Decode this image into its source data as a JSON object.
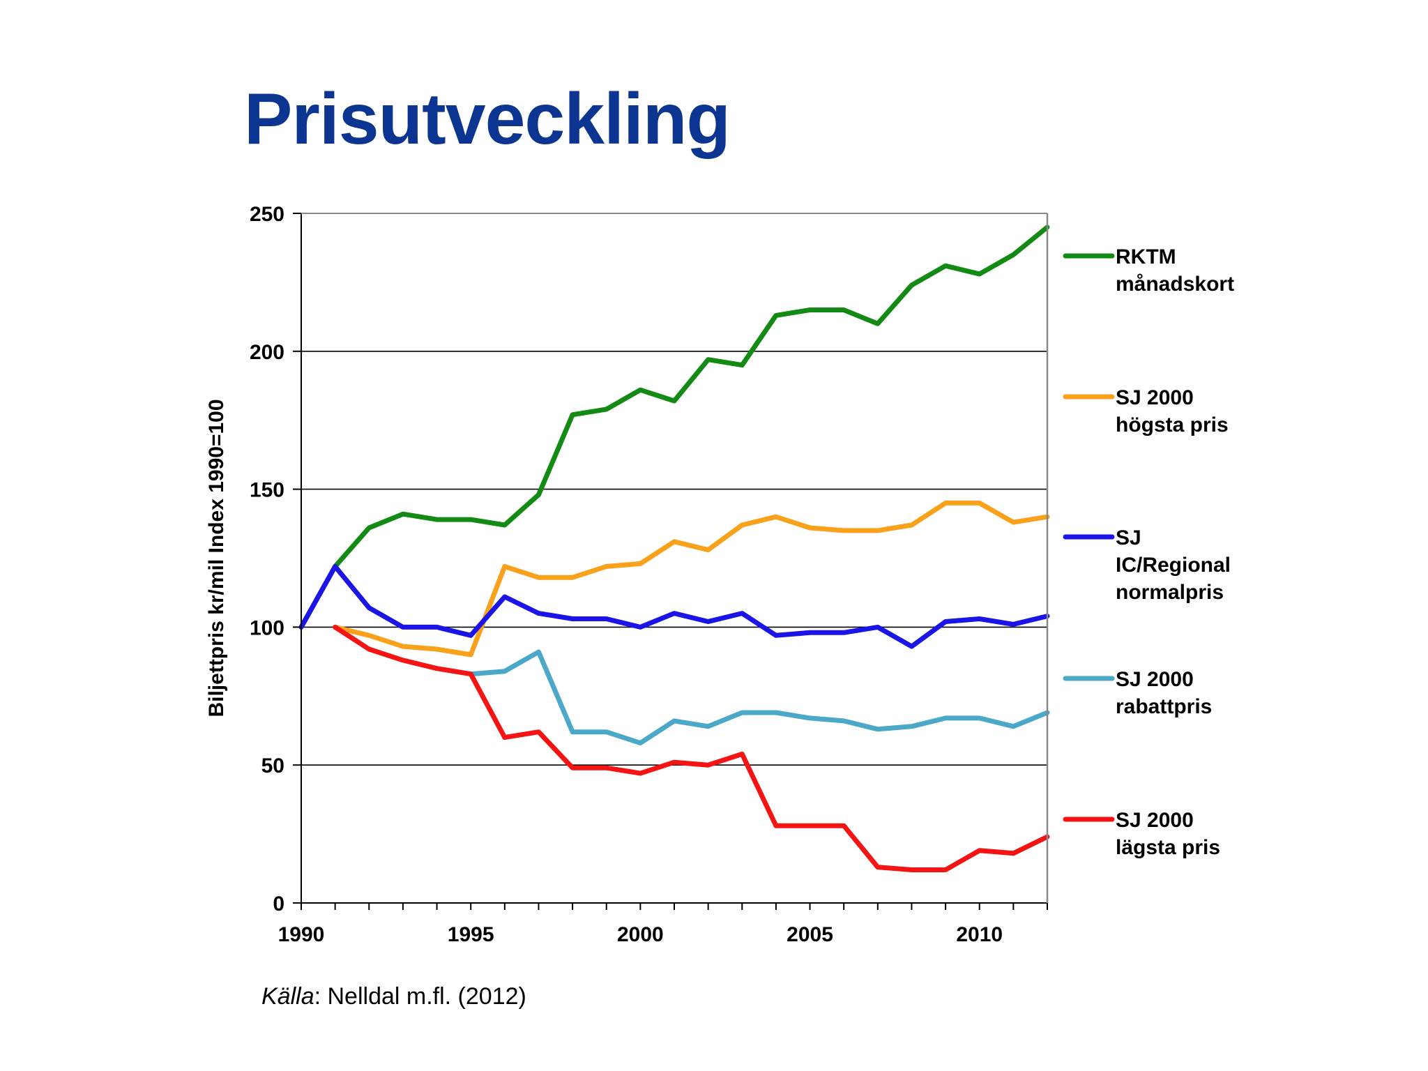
{
  "slide": {
    "title": "Prisutveckling",
    "source_label": "Källa",
    "source_text": ": Nelldal m.fl. (2012)"
  },
  "chart_data": {
    "type": "line",
    "title": "",
    "xlabel": "",
    "ylabel": "Biljettpris kr/mil Index 1990=100",
    "xlim": [
      1990,
      2012
    ],
    "ylim": [
      0,
      250
    ],
    "x_ticks": [
      1990,
      1995,
      2000,
      2005,
      2010
    ],
    "y_ticks": [
      0,
      50,
      100,
      150,
      200,
      250
    ],
    "grid": "horizontal",
    "legend_position": "right",
    "series": [
      {
        "name": [
          "RKTM",
          "månadskort"
        ],
        "color": "#138A13",
        "x": [
          1990,
          1991,
          1992,
          1993,
          1994,
          1995,
          1996,
          1997,
          1998,
          1999,
          2000,
          2001,
          2002,
          2003,
          2004,
          2005,
          2006,
          2007,
          2008,
          2009,
          2010,
          2011,
          2012
        ],
        "values": [
          100,
          122,
          136,
          141,
          139,
          139,
          137,
          148,
          177,
          179,
          186,
          182,
          197,
          195,
          213,
          215,
          215,
          210,
          224,
          231,
          228,
          235,
          245
        ]
      },
      {
        "name": [
          "SJ 2000",
          "högsta pris"
        ],
        "color": "#F9A11B",
        "x": [
          1991,
          1992,
          1993,
          1994,
          1995,
          1996,
          1997,
          1998,
          1999,
          2000,
          2001,
          2002,
          2003,
          2004,
          2005,
          2006,
          2007,
          2008,
          2009,
          2010,
          2011,
          2012
        ],
        "values": [
          100,
          97,
          93,
          92,
          90,
          122,
          118,
          118,
          122,
          123,
          131,
          128,
          137,
          140,
          136,
          135,
          135,
          137,
          145,
          145,
          138,
          140
        ]
      },
      {
        "name": [
          "SJ",
          "IC/Regional",
          "normalpris"
        ],
        "color": "#1A14E6",
        "x": [
          1990,
          1991,
          1992,
          1993,
          1994,
          1995,
          1996,
          1997,
          1998,
          1999,
          2000,
          2001,
          2002,
          2003,
          2004,
          2005,
          2006,
          2007,
          2008,
          2009,
          2010,
          2011,
          2012
        ],
        "values": [
          100,
          122,
          107,
          100,
          100,
          97,
          111,
          105,
          103,
          103,
          100,
          105,
          102,
          105,
          97,
          98,
          98,
          100,
          93,
          102,
          103,
          101,
          104
        ]
      },
      {
        "name": [
          "SJ 2000",
          "rabattpris"
        ],
        "color": "#4BA8C8",
        "x": [
          1995,
          1996,
          1997,
          1998,
          1999,
          2000,
          2001,
          2002,
          2003,
          2004,
          2005,
          2006,
          2007,
          2008,
          2009,
          2010,
          2011,
          2012
        ],
        "values": [
          83,
          84,
          91,
          62,
          62,
          58,
          66,
          64,
          69,
          69,
          67,
          66,
          63,
          64,
          67,
          67,
          64,
          69
        ]
      },
      {
        "name": [
          "SJ 2000",
          "lägsta pris"
        ],
        "color": "#F51414",
        "x": [
          1991,
          1992,
          1993,
          1994,
          1995,
          1996,
          1997,
          1998,
          1999,
          2000,
          2001,
          2002,
          2003,
          2004,
          2005,
          2006,
          2007,
          2008,
          2009,
          2010,
          2011,
          2012
        ],
        "values": [
          100,
          92,
          88,
          85,
          83,
          60,
          62,
          49,
          49,
          47,
          51,
          50,
          54,
          28,
          28,
          28,
          13,
          12,
          12,
          19,
          18,
          24
        ]
      }
    ]
  }
}
